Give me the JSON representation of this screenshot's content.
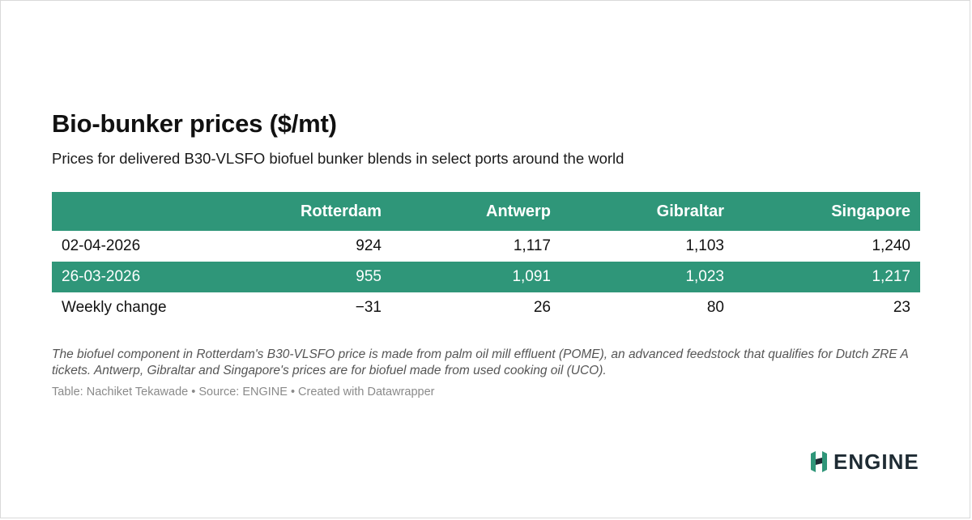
{
  "title": "Bio-bunker prices ($/mt)",
  "subtitle": "Prices for delivered B30-VLSFO biofuel bunker blends in select ports around the world",
  "chart_data": {
    "type": "table",
    "columns": [
      "",
      "Rotterdam",
      "Antwerp",
      "Gibraltar",
      "Singapore"
    ],
    "rows": [
      {
        "label": "02-04-2026",
        "values": [
          "924",
          "1,117",
          "1,103",
          "1,240"
        ]
      },
      {
        "label": "26-03-2026",
        "values": [
          "955",
          "1,091",
          "1,023",
          "1,217"
        ]
      },
      {
        "label": "Weekly change",
        "values": [
          "−31",
          "26",
          "80",
          "23"
        ]
      }
    ]
  },
  "notes": "The biofuel component in Rotterdam's B30-VLSFO price is made from palm oil mill effluent (POME), an advanced feedstock that qualifies for Dutch ZRE A tickets. Antwerp, Gibraltar and Singapore's prices are for biofuel made from used cooking oil (UCO).",
  "credit": "Table: Nachiket Tekawade • Source: ENGINE • Created with Datawrapper",
  "logo": {
    "text": "ENGINE",
    "icon": "engine-logo-icon"
  },
  "colors": {
    "header": "#2f9679",
    "shaded_row": "#2f9679",
    "logo_icon": "#2f9679",
    "logo_text": "#1e2b33"
  }
}
